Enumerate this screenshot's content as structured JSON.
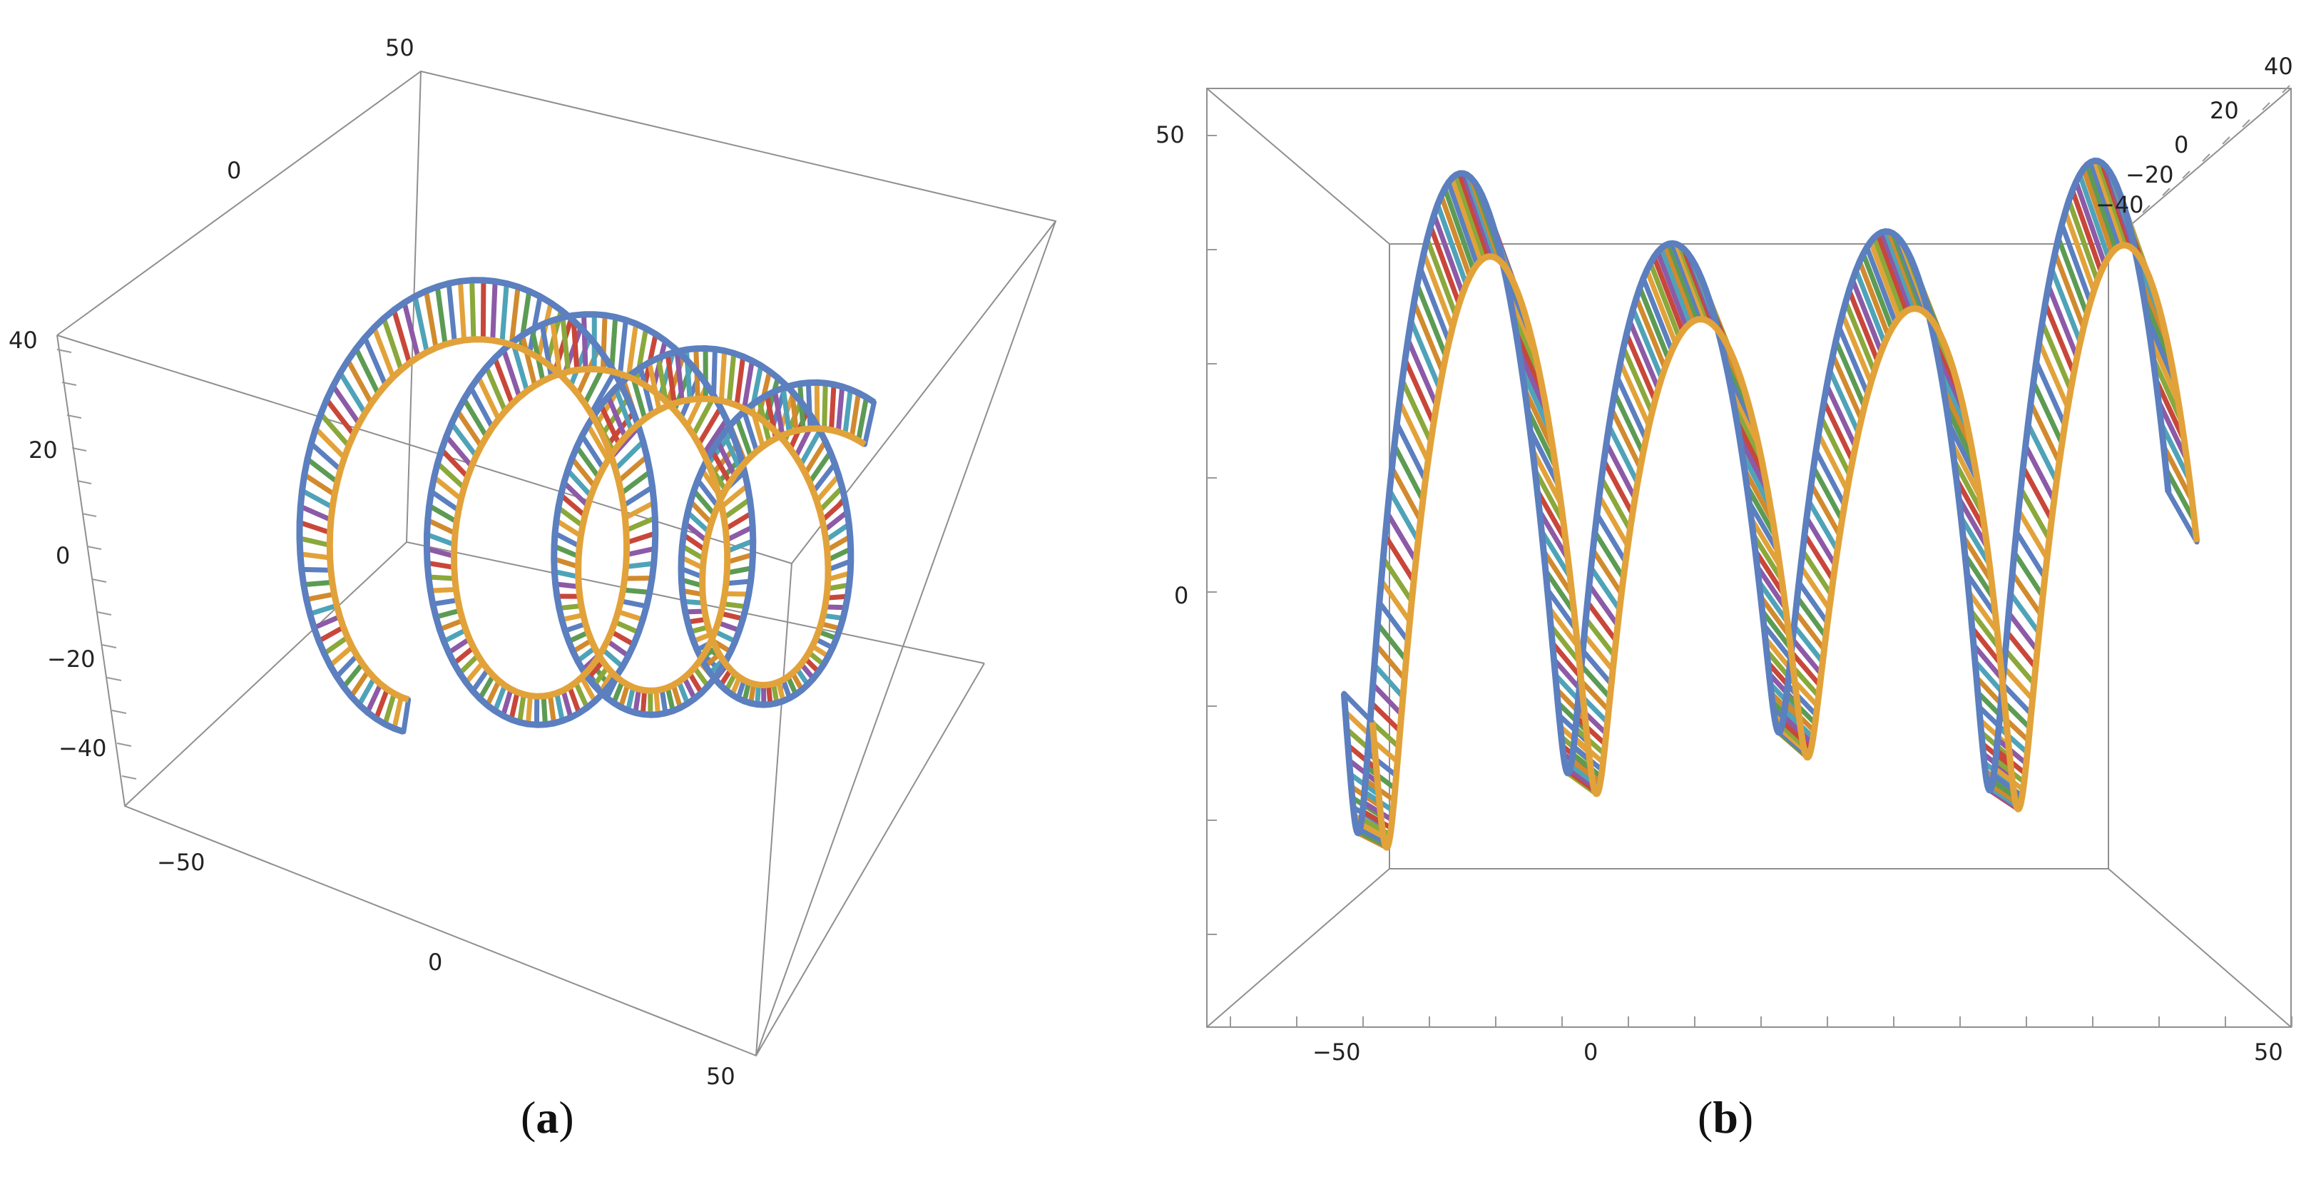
{
  "panels": [
    {
      "id": "a",
      "caption_letter": "a",
      "tick_labels_top": [
        "50",
        "0"
      ],
      "tick_labels_left": [
        "40",
        "20",
        "0",
        "−20",
        "−40"
      ],
      "tick_labels_bottom": [
        "−50",
        "0",
        "50"
      ]
    },
    {
      "id": "b",
      "caption_letter": "b",
      "tick_labels_left": [
        "50",
        "0"
      ],
      "tick_labels_bottom": [
        "−50",
        "0",
        "50"
      ],
      "tick_labels_depth": [
        "40",
        "20",
        "0",
        "−20",
        "−40"
      ]
    }
  ],
  "colors": {
    "edge_blue": "#5b7fbf",
    "edge_orange": "#e2a23a",
    "rung_palette": [
      "#5b7fbf",
      "#e2a23a",
      "#8aa83b",
      "#c8473a",
      "#8c5aa6",
      "#4fa3b8",
      "#d18a2e",
      "#5c9b54"
    ]
  }
}
